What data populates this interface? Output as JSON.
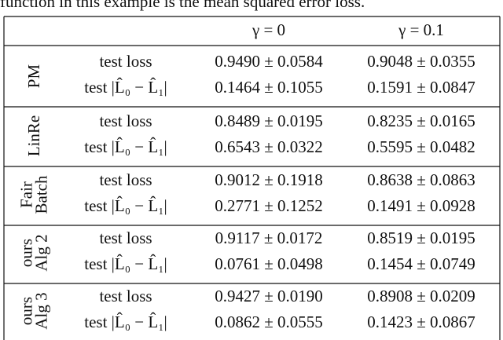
{
  "caption": "function in this example is the mean squared error loss.",
  "table": {
    "header": [
      "γ = 0",
      "γ = 0.1"
    ],
    "groups": [
      {
        "label": [
          "PM"
        ],
        "rows": [
          {
            "metric": "test loss",
            "values": [
              "0.9490 ± 0.0584",
              "0.9048 ± 0.0355"
            ]
          },
          {
            "metric": "test |L̂₀ − L̂₁|",
            "values": [
              "0.1464 ± 0.1055",
              "0.1591 ± 0.0847"
            ]
          }
        ]
      },
      {
        "label": [
          "LinRe"
        ],
        "rows": [
          {
            "metric": "test loss",
            "values": [
              "0.8489 ± 0.0195",
              "0.8235 ± 0.0165"
            ]
          },
          {
            "metric": "test |L̂₀ − L̂₁|",
            "values": [
              "0.6543 ± 0.0322",
              "0.5595 ± 0.0482"
            ]
          }
        ]
      },
      {
        "label": [
          "Fair",
          "Batch"
        ],
        "rows": [
          {
            "metric": "test loss",
            "values": [
              "0.9012 ± 0.1918",
              "0.8638 ± 0.0863"
            ]
          },
          {
            "metric": "test |L̂₀ − L̂₁|",
            "values": [
              "0.2771 ± 0.1252",
              "0.1491 ± 0.0928"
            ]
          }
        ]
      },
      {
        "label": [
          "ours",
          "Alg 2"
        ],
        "rows": [
          {
            "metric": "test loss",
            "values": [
              "0.9117 ± 0.0172",
              "0.8519 ± 0.0195"
            ]
          },
          {
            "metric": "test |L̂₀ − L̂₁|",
            "values": [
              "0.0761 ± 0.0498",
              "0.1454 ± 0.0749"
            ]
          }
        ]
      },
      {
        "label": [
          "ours",
          "Alg 3"
        ],
        "rows": [
          {
            "metric": "test loss",
            "values": [
              "0.9427 ± 0.0190",
              "0.8908 ± 0.0209"
            ]
          },
          {
            "metric": "test |L̂₀ − L̂₁|",
            "values": [
              "0.0862 ± 0.0555",
              "0.1423 ± 0.0867"
            ]
          }
        ]
      }
    ]
  }
}
